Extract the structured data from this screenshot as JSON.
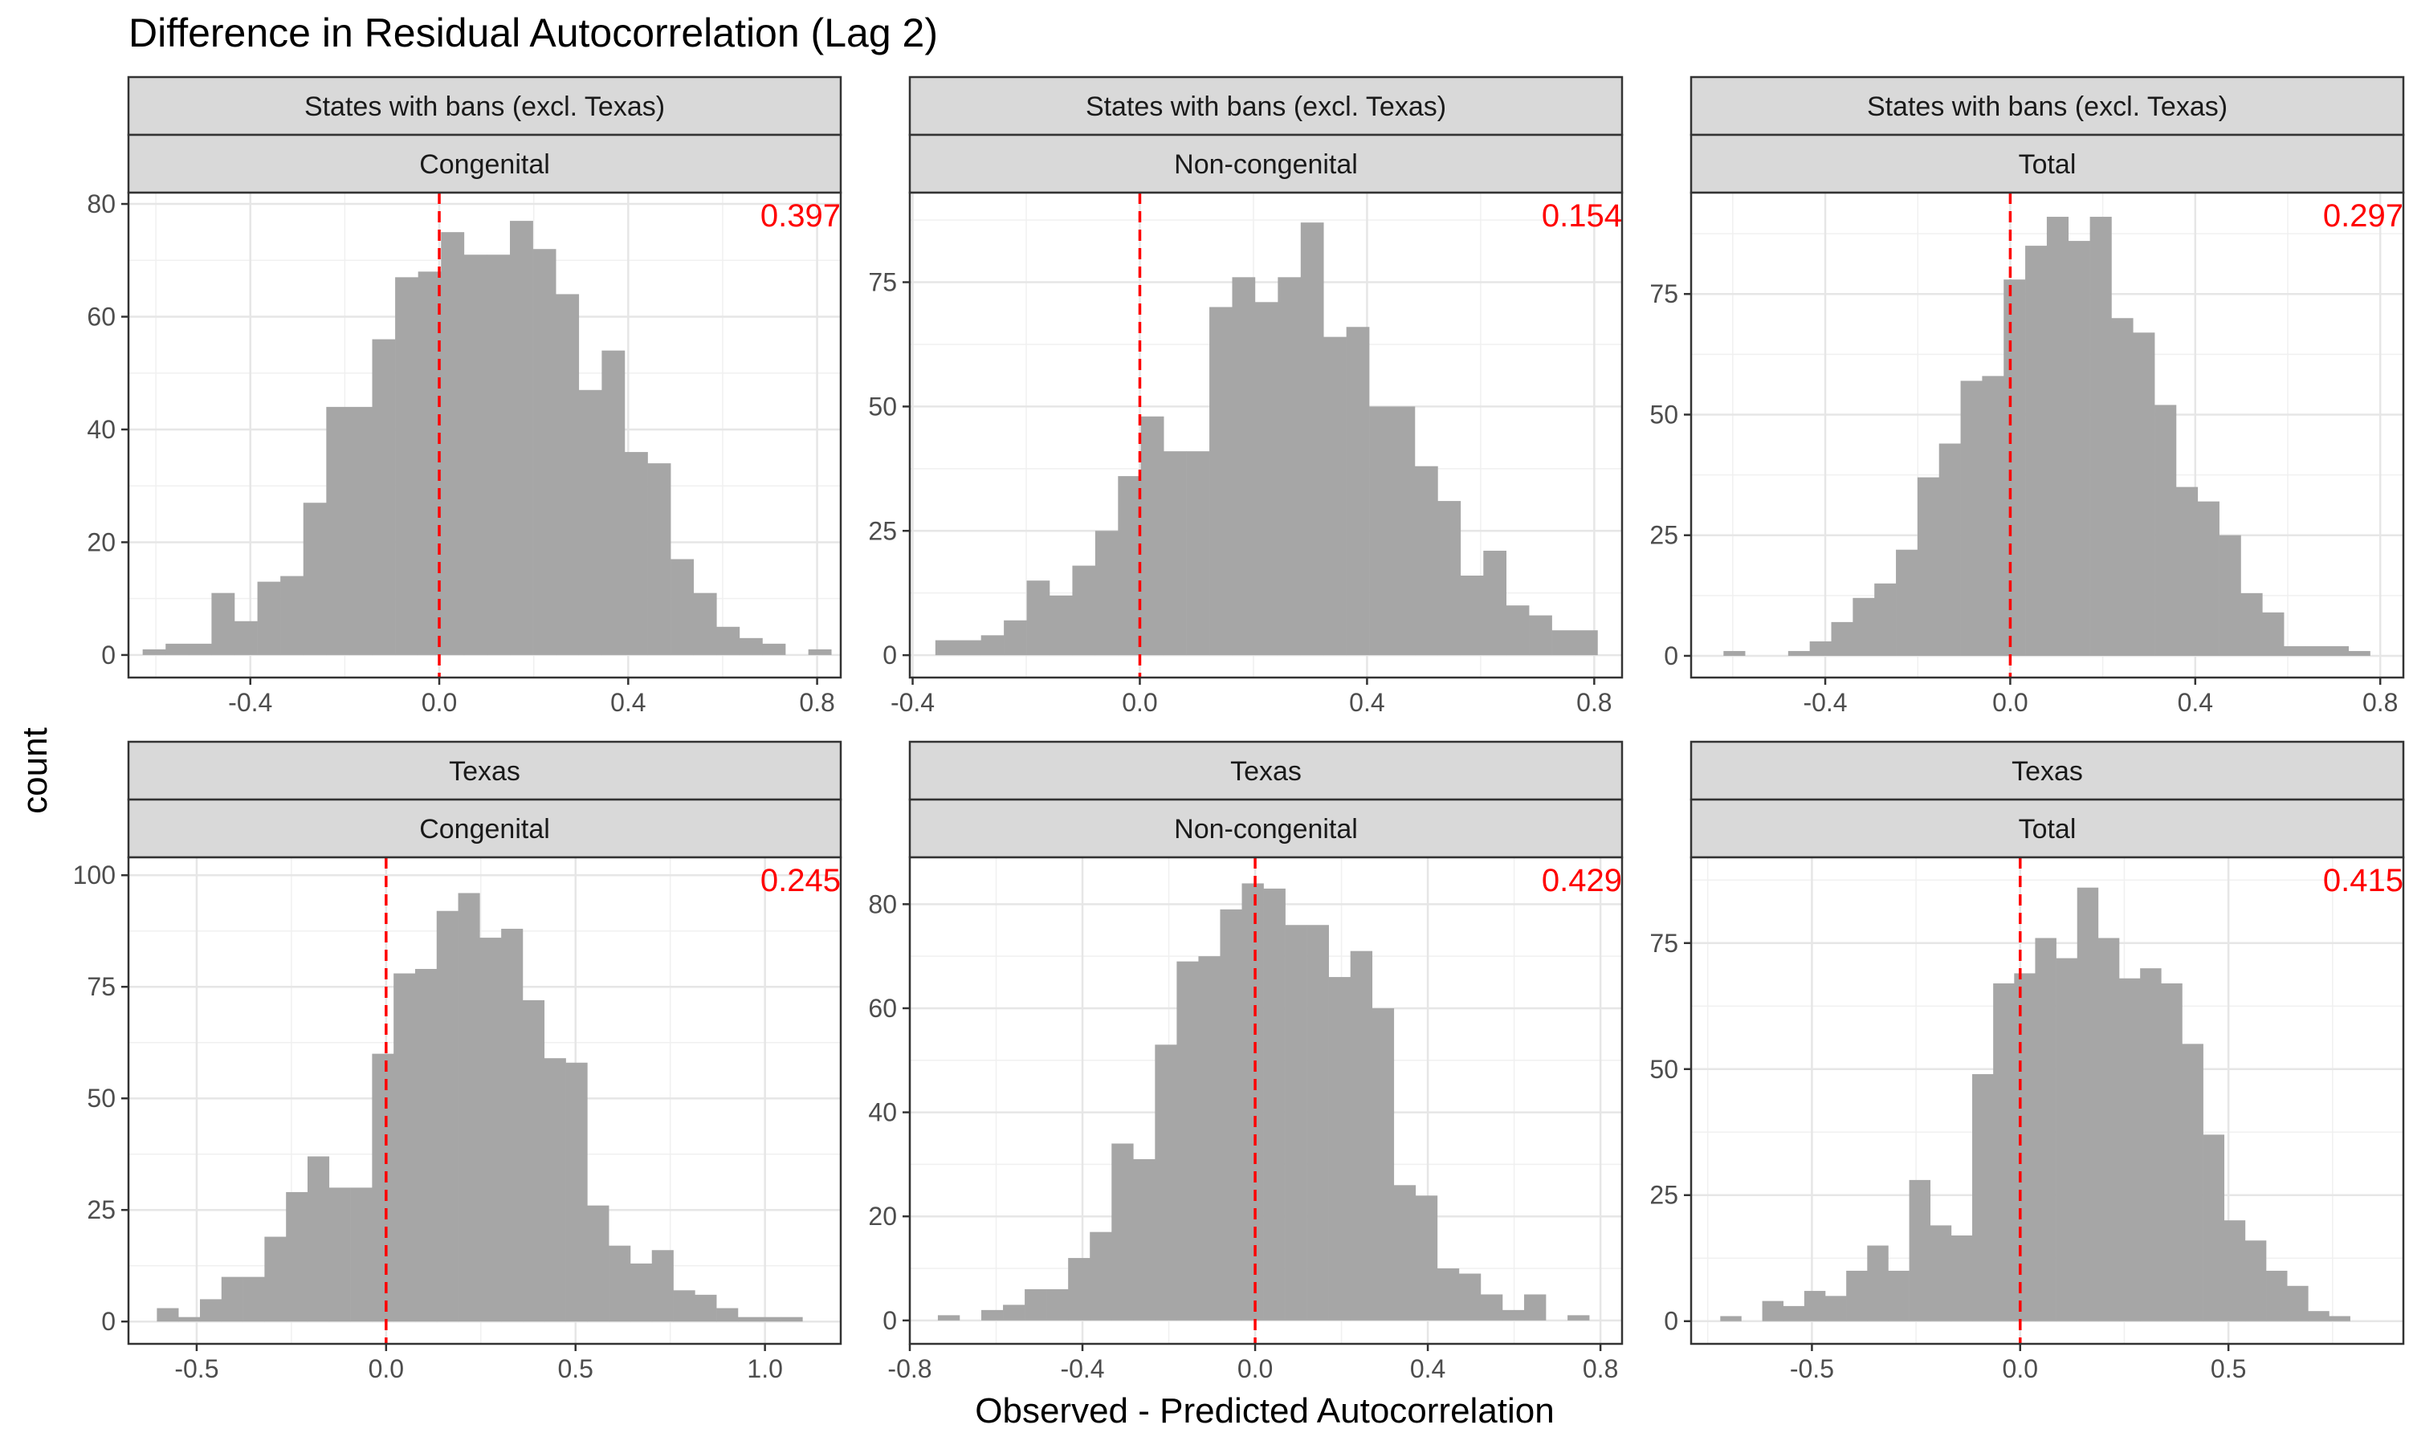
{
  "title": "Difference in Residual Autocorrelation (Lag 2)",
  "xlabel": "Observed - Predicted Autocorrelation",
  "ylabel": "count",
  "chart_data": [
    {
      "type": "bar",
      "strip_top": "States with bans (excl. Texas)",
      "strip_bottom": "Congenital",
      "annotation": "0.397",
      "xlim": [
        -0.658,
        0.85
      ],
      "ylim": [
        -4,
        82
      ],
      "xticks": [
        -0.4,
        0.0,
        0.4,
        0.8
      ],
      "xtick_labels": [
        "-0.4",
        "0.0",
        "0.4",
        "0.8"
      ],
      "yticks": [
        0,
        20,
        40,
        60,
        80
      ],
      "ytick_labels": [
        "0",
        "20",
        "40",
        "60",
        "80"
      ],
      "bin_start": -0.628,
      "bin_width": 0.0486,
      "x": [
        -0.604,
        -0.555,
        -0.507,
        -0.458,
        -0.41,
        -0.361,
        -0.312,
        -0.264,
        -0.215,
        -0.167,
        -0.118,
        -0.07,
        -0.021,
        0.028,
        0.076,
        0.125,
        0.173,
        0.222,
        0.27,
        0.319,
        0.368,
        0.416,
        0.465,
        0.513,
        0.562,
        0.61,
        0.659,
        0.707,
        0.756,
        0.805
      ],
      "values": [
        1,
        2,
        2,
        11,
        6,
        13,
        14,
        27,
        44,
        44,
        56,
        67,
        68,
        75,
        71,
        71,
        77,
        72,
        64,
        47,
        54,
        36,
        34,
        17,
        11,
        5,
        3,
        2,
        0,
        1
      ],
      "reference_x": 0.0
    },
    {
      "type": "bar",
      "strip_top": "States with bans (excl. Texas)",
      "strip_bottom": "Non-congenital",
      "annotation": "0.154",
      "xlim": [
        -0.405,
        0.849
      ],
      "ylim": [
        -4.5,
        93
      ],
      "xticks": [
        -0.4,
        0.0,
        0.4,
        0.8
      ],
      "xtick_labels": [
        "-0.4",
        "0.0",
        "0.4",
        "0.8"
      ],
      "yticks": [
        0,
        25,
        50,
        75
      ],
      "ytick_labels": [
        "0",
        "25",
        "50",
        "75"
      ],
      "bin_start": -0.36,
      "bin_width": 0.0402,
      "x": [
        -0.34,
        -0.3,
        -0.26,
        -0.219,
        -0.179,
        -0.139,
        -0.099,
        -0.059,
        -0.018,
        0.022,
        0.062,
        0.102,
        0.142,
        0.183,
        0.223,
        0.263,
        0.303,
        0.343,
        0.384,
        0.424,
        0.464,
        0.504,
        0.545,
        0.585,
        0.625,
        0.665,
        0.705,
        0.746,
        0.786
      ],
      "values": [
        3,
        3,
        4,
        7,
        15,
        12,
        18,
        25,
        36,
        48,
        41,
        41,
        70,
        76,
        71,
        76,
        87,
        64,
        66,
        50,
        50,
        38,
        31,
        16,
        21,
        10,
        8,
        5,
        5
      ],
      "reference_x": 0.0
    },
    {
      "type": "bar",
      "strip_top": "States with bans (excl. Texas)",
      "strip_bottom": "Total",
      "annotation": "0.297",
      "xlim": [
        -0.69,
        0.85
      ],
      "ylim": [
        -4.5,
        96
      ],
      "xticks": [
        -0.4,
        0.0,
        0.4,
        0.8
      ],
      "xtick_labels": [
        "-0.4",
        "0.0",
        "0.4",
        "0.8"
      ],
      "yticks": [
        0,
        25,
        50,
        75
      ],
      "ytick_labels": [
        "0",
        "25",
        "50",
        "75"
      ],
      "bin_start": -0.62,
      "bin_width": 0.0466,
      "x": [
        -0.597,
        -0.55,
        -0.503,
        -0.457,
        -0.41,
        -0.364,
        -0.317,
        -0.27,
        -0.224,
        -0.177,
        -0.131,
        -0.084,
        -0.037,
        0.009,
        0.056,
        0.102,
        0.149,
        0.196,
        0.242,
        0.289,
        0.335,
        0.382,
        0.429,
        0.475,
        0.522,
        0.568,
        0.615,
        0.662,
        0.708,
        0.755
      ],
      "values": [
        1,
        0,
        0,
        1,
        3,
        7,
        12,
        15,
        22,
        37,
        44,
        57,
        58,
        78,
        85,
        91,
        86,
        91,
        70,
        67,
        52,
        35,
        32,
        25,
        13,
        9,
        2,
        2,
        2,
        1
      ],
      "reference_x": 0.0
    },
    {
      "type": "bar",
      "strip_top": "Texas",
      "strip_bottom": "Congenital",
      "annotation": "0.245",
      "xlim": [
        -0.68,
        1.2
      ],
      "ylim": [
        -5,
        104
      ],
      "xticks": [
        -0.5,
        0.0,
        0.5,
        1.0
      ],
      "xtick_labels": [
        "-0.5",
        "0.0",
        "0.5",
        "1.0"
      ],
      "yticks": [
        0,
        25,
        50,
        75,
        100
      ],
      "ytick_labels": [
        "0",
        "25",
        "50",
        "75",
        "100"
      ],
      "bin_start": -0.605,
      "bin_width": 0.0568,
      "x": [
        -0.577,
        -0.52,
        -0.463,
        -0.406,
        -0.35,
        -0.293,
        -0.236,
        -0.179,
        -0.122,
        -0.066,
        -0.009,
        0.048,
        0.105,
        0.162,
        0.218,
        0.275,
        0.332,
        0.389,
        0.446,
        0.502,
        0.559,
        0.616,
        0.673,
        0.73,
        0.786,
        0.843,
        0.9,
        0.957,
        1.014,
        1.07
      ],
      "values": [
        3,
        1,
        5,
        10,
        10,
        19,
        29,
        37,
        30,
        30,
        60,
        78,
        79,
        92,
        96,
        86,
        88,
        72,
        59,
        58,
        26,
        17,
        13,
        16,
        7,
        6,
        3,
        1,
        1,
        1
      ],
      "reference_x": 0.0
    },
    {
      "type": "bar",
      "strip_top": "Texas",
      "strip_bottom": "Non-congenital",
      "annotation": "0.429",
      "xlim": [
        -0.8,
        0.85
      ],
      "ylim": [
        -4.5,
        89
      ],
      "xticks": [
        -0.8,
        -0.4,
        0.0,
        0.4,
        0.8
      ],
      "xtick_labels": [
        "-0.8",
        "-0.4",
        "0.0",
        "0.4",
        "0.8"
      ],
      "yticks": [
        0,
        20,
        40,
        60,
        80
      ],
      "ytick_labels": [
        "0",
        "20",
        "40",
        "60",
        "80"
      ],
      "bin_start": -0.735,
      "bin_width": 0.0503,
      "x": [
        -0.71,
        -0.659,
        -0.609,
        -0.559,
        -0.509,
        -0.458,
        -0.408,
        -0.358,
        -0.307,
        -0.257,
        -0.207,
        -0.156,
        -0.106,
        -0.056,
        -0.006,
        0.045,
        0.095,
        0.145,
        0.196,
        0.246,
        0.296,
        0.347,
        0.397,
        0.447,
        0.497,
        0.548,
        0.598,
        0.648,
        0.699,
        0.749
      ],
      "values": [
        1,
        0,
        2,
        3,
        6,
        6,
        12,
        17,
        34,
        31,
        53,
        69,
        70,
        79,
        84,
        83,
        76,
        76,
        66,
        71,
        60,
        26,
        24,
        10,
        9,
        5,
        2,
        5,
        0,
        1
      ],
      "reference_x": 0.0
    },
    {
      "type": "bar",
      "strip_top": "Texas",
      "strip_bottom": "Total",
      "annotation": "0.415",
      "xlim": [
        -0.79,
        0.92
      ],
      "ylim": [
        -4.5,
        92
      ],
      "xticks": [
        -0.5,
        0.0,
        0.5
      ],
      "xtick_labels": [
        "-0.5",
        "0.0",
        "0.5"
      ],
      "yticks": [
        0,
        25,
        50,
        75
      ],
      "ytick_labels": [
        "0",
        "25",
        "50",
        "75"
      ],
      "bin_start": -0.72,
      "bin_width": 0.0504,
      "x": [
        -0.695,
        -0.645,
        -0.594,
        -0.544,
        -0.494,
        -0.443,
        -0.393,
        -0.343,
        -0.292,
        -0.242,
        -0.191,
        -0.141,
        -0.091,
        -0.04,
        0.01,
        0.06,
        0.111,
        0.161,
        0.212,
        0.262,
        0.312,
        0.363,
        0.413,
        0.464,
        0.514,
        0.564,
        0.615,
        0.665,
        0.716,
        0.766
      ],
      "values": [
        1,
        0,
        4,
        3,
        6,
        5,
        10,
        15,
        10,
        28,
        19,
        17,
        49,
        67,
        69,
        76,
        72,
        86,
        76,
        68,
        70,
        67,
        55,
        37,
        20,
        16,
        10,
        7,
        2,
        1
      ],
      "reference_x": 0.0
    }
  ]
}
